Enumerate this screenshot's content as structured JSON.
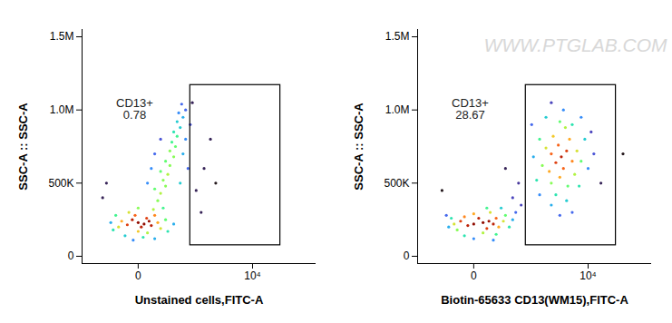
{
  "chart_data": [
    {
      "type": "scatter",
      "x_label": "Unstained cells,FITC-A",
      "y_label": "SSC-A :: SSC-A",
      "log": "x",
      "xlim": [
        -1400,
        73000
      ],
      "ylim": [
        -50000,
        1550000
      ],
      "xticks": [
        0,
        {
          "value": 10000,
          "label": "10⁴"
        }
      ],
      "yticks": [
        0,
        {
          "value": 500000,
          "label": "500K"
        },
        {
          "value": 1000000,
          "label": "1.0M"
        },
        {
          "value": 1500000,
          "label": "1.5M"
        }
      ],
      "gate": {
        "label": "CD13+",
        "value": 0.78,
        "x": [
          1200,
          24000
        ],
        "y": [
          75000,
          1170000
        ]
      },
      "x": [
        0,
        60,
        120,
        -60,
        30,
        150,
        -120,
        90,
        -30,
        200,
        -200,
        250,
        -250,
        300,
        0,
        100,
        -100,
        180,
        -300,
        400,
        -350,
        450,
        50,
        -150,
        350,
        0,
        600,
        -400,
        200,
        -50,
        250,
        300,
        200,
        400,
        350,
        450,
        300,
        500,
        400,
        600,
        500,
        650,
        550,
        700,
        600,
        800,
        700,
        900,
        750,
        1000,
        850,
        150,
        900,
        1000,
        200,
        1200,
        300,
        1100,
        100,
        800,
        1500,
        2000,
        1800,
        -500,
        2500,
        -600,
        1300,
        3000
      ],
      "y": [
        230000,
        220000,
        240000,
        250000,
        200000,
        210000,
        215000,
        260000,
        280000,
        280000,
        240000,
        230000,
        200000,
        190000,
        170000,
        160000,
        300000,
        320000,
        280000,
        250000,
        180000,
        170000,
        130000,
        140000,
        330000,
        330000,
        220000,
        230000,
        120000,
        110000,
        380000,
        430000,
        460000,
        480000,
        520000,
        560000,
        580000,
        620000,
        650000,
        680000,
        720000,
        750000,
        780000,
        820000,
        850000,
        880000,
        920000,
        950000,
        980000,
        1000000,
        1040000,
        600000,
        700000,
        800000,
        700000,
        900000,
        800000,
        600000,
        500000,
        500000,
        450000,
        600000,
        300000,
        500000,
        800000,
        400000,
        1050000,
        500000
      ],
      "density": [
        1,
        1,
        0.95,
        0.9,
        0.9,
        0.9,
        0.85,
        0.85,
        0.8,
        0.75,
        0.7,
        0.7,
        0.6,
        0.6,
        0.65,
        0.55,
        0.6,
        0.55,
        0.4,
        0.45,
        0.35,
        0.35,
        0.35,
        0.3,
        0.4,
        0.5,
        0.25,
        0.25,
        0.25,
        0.2,
        0.5,
        0.55,
        0.45,
        0.5,
        0.5,
        0.55,
        0.45,
        0.5,
        0.45,
        0.5,
        0.5,
        0.45,
        0.4,
        0.4,
        0.35,
        0.3,
        0.3,
        0.25,
        0.2,
        0.15,
        0.15,
        0.2,
        0.25,
        0.2,
        0.15,
        0.12,
        0.12,
        0.15,
        0.2,
        0.3,
        0.05,
        0.05,
        0.05,
        0.05,
        0.05,
        0.05,
        0.05,
        0.03
      ]
    },
    {
      "type": "scatter",
      "x_label": "Biotin-65633 CD13(WM15),FITC-A",
      "y_label": "SSC-A :: SSC-A",
      "log": "x",
      "watermark": "WWW.PTGLAB.COM",
      "xlim": [
        -1400,
        73000
      ],
      "ylim": [
        -50000,
        1550000
      ],
      "xticks": [
        0,
        {
          "value": 10000,
          "label": "10⁴"
        }
      ],
      "yticks": [
        0,
        {
          "value": 500000,
          "label": "500K"
        },
        {
          "value": 1000000,
          "label": "1.0M"
        },
        {
          "value": 1500000,
          "label": "1.5M"
        }
      ],
      "gate": {
        "label": "CD13+",
        "value": 28.67,
        "x": [
          1200,
          24000
        ],
        "y": [
          75000,
          1170000
        ]
      },
      "x": [
        100,
        0,
        180,
        -60,
        250,
        50,
        -150,
        150,
        300,
        -100,
        350,
        0,
        -250,
        450,
        200,
        100,
        -200,
        500,
        -300,
        600,
        300,
        -100,
        150,
        700,
        -350,
        400,
        0,
        250,
        800,
        -400,
        4200,
        3500,
        5000,
        3000,
        4500,
        6000,
        3800,
        2800,
        5500,
        4000,
        7000,
        2500,
        3200,
        6500,
        2200,
        4800,
        8000,
        3000,
        5200,
        2000,
        4000,
        9000,
        1800,
        7500,
        3500,
        6000,
        2500,
        10000,
        1600,
        5000,
        3000,
        8000,
        12000,
        4500,
        2000,
        6000,
        1500,
        4000,
        11000,
        3000,
        700,
        900,
        500,
        1000,
        30000,
        -500,
        15000
      ],
      "y": [
        230000,
        220000,
        240000,
        210000,
        220000,
        260000,
        240000,
        190000,
        260000,
        270000,
        200000,
        290000,
        220000,
        240000,
        300000,
        160000,
        180000,
        280000,
        260000,
        200000,
        150000,
        140000,
        330000,
        250000,
        200000,
        330000,
        120000,
        110000,
        300000,
        280000,
        680000,
        640000,
        720000,
        700000,
        600000,
        650000,
        760000,
        580000,
        800000,
        540000,
        720000,
        740000,
        820000,
        560000,
        620000,
        880000,
        650000,
        500000,
        480000,
        800000,
        920000,
        800000,
        520000,
        480000,
        420000,
        900000,
        950000,
        600000,
        680000,
        380000,
        350000,
        950000,
        700000,
        1000000,
        420000,
        300000,
        900000,
        280000,
        850000,
        1050000,
        400000,
        500000,
        600000,
        350000,
        700000,
        450000,
        500000
      ],
      "density": [
        1,
        1,
        0.95,
        0.9,
        0.9,
        0.9,
        0.85,
        0.85,
        0.8,
        0.75,
        0.7,
        0.7,
        0.6,
        0.6,
        0.6,
        0.55,
        0.5,
        0.45,
        0.35,
        0.35,
        0.4,
        0.35,
        0.4,
        0.25,
        0.25,
        0.3,
        0.2,
        0.2,
        0.15,
        0.15,
        0.9,
        0.85,
        0.85,
        0.8,
        0.8,
        0.75,
        0.8,
        0.7,
        0.7,
        0.7,
        0.6,
        0.6,
        0.65,
        0.55,
        0.5,
        0.55,
        0.45,
        0.5,
        0.45,
        0.4,
        0.45,
        0.3,
        0.35,
        0.35,
        0.35,
        0.35,
        0.3,
        0.2,
        0.25,
        0.3,
        0.25,
        0.2,
        0.12,
        0.2,
        0.2,
        0.15,
        0.15,
        0.15,
        0.1,
        0.1,
        0.1,
        0.08,
        0.05,
        0.1,
        0.03,
        0.03,
        0.05
      ]
    }
  ]
}
